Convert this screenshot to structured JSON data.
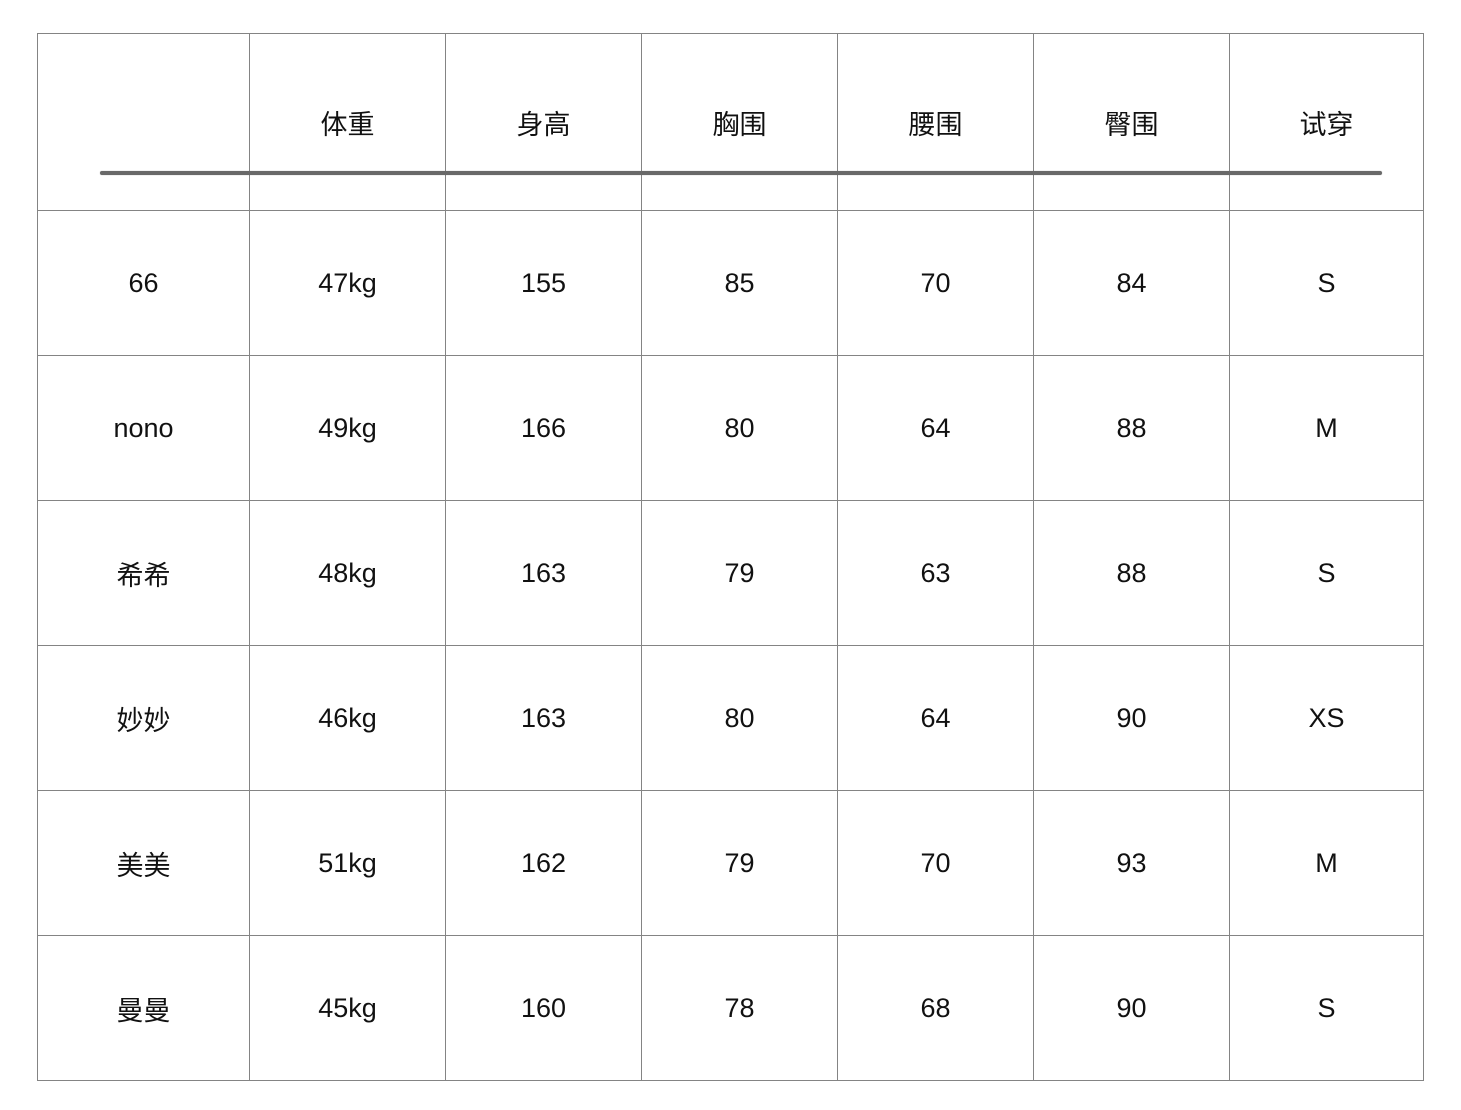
{
  "page": {
    "background_color": "#ffffff"
  },
  "table": {
    "title_semantic": "model-size-fitting-chart",
    "columns": [
      "",
      "体重",
      "身高",
      "胸围",
      "腰围",
      "臀围",
      "试穿"
    ],
    "rows": [
      {
        "name": "66",
        "weight": "47kg",
        "height": "155",
        "bust": "85",
        "waist": "70",
        "hip": "84",
        "fit": "S"
      },
      {
        "name": "nono",
        "weight": "49kg",
        "height": "166",
        "bust": "80",
        "waist": "64",
        "hip": "88",
        "fit": "M"
      },
      {
        "name": "希希",
        "weight": "48kg",
        "height": "163",
        "bust": "79",
        "waist": "63",
        "hip": "88",
        "fit": "S"
      },
      {
        "name": "妙妙",
        "weight": "46kg",
        "height": "163",
        "bust": "80",
        "waist": "64",
        "hip": "90",
        "fit": "XS"
      },
      {
        "name": "美美",
        "weight": "51kg",
        "height": "162",
        "bust": "79",
        "waist": "70",
        "hip": "93",
        "fit": "M"
      },
      {
        "name": "曼曼",
        "weight": "45kg",
        "height": "160",
        "bust": "78",
        "waist": "68",
        "hip": "90",
        "fit": "S"
      }
    ],
    "colors": {
      "grid_line": "#848484",
      "header_underline": "#696969",
      "text": "#111111"
    }
  }
}
